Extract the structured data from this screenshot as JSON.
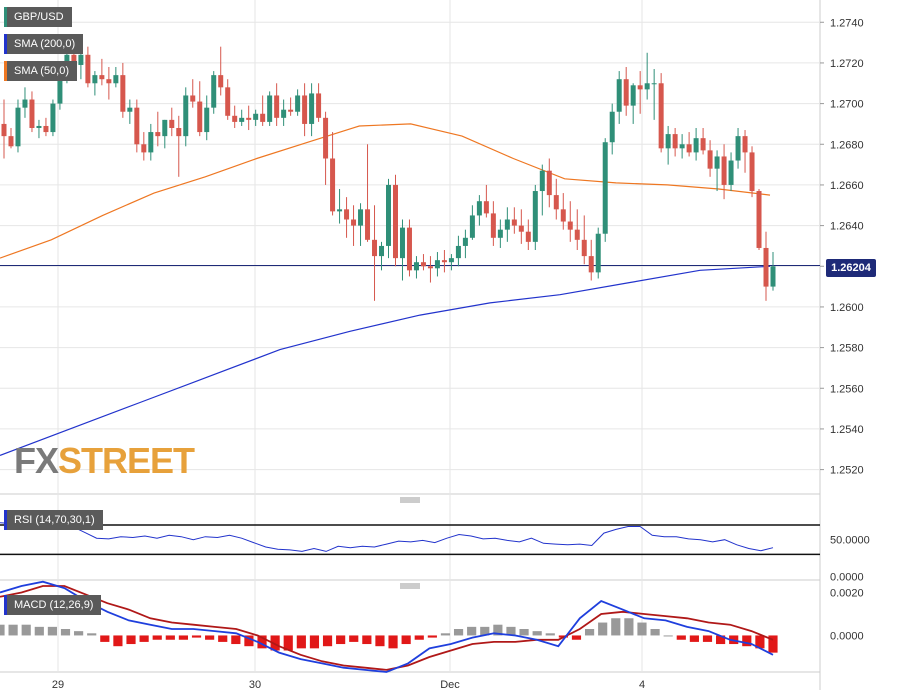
{
  "chart_data": [
    {
      "panel": "price",
      "type": "candlestick",
      "title": "GBP/USD",
      "ylim": [
        1.2508,
        1.2748
      ],
      "yticks": [
        "1.2740",
        "1.2720",
        "1.2700",
        "1.2680",
        "1.2660",
        "1.2640",
        "1.2620",
        "1.2600",
        "1.2580",
        "1.2560",
        "1.2540",
        "1.2520"
      ],
      "xticks": [
        "29",
        "30",
        "Dec",
        "4"
      ],
      "current_price": "1.26204",
      "current_price_value": 1.26204,
      "candles": [
        [
          1.269,
          1.2702,
          1.2673,
          1.2684
        ],
        [
          1.2684,
          1.2688,
          1.2678,
          1.2679
        ],
        [
          1.2679,
          1.2702,
          1.2676,
          1.2698
        ],
        [
          1.2698,
          1.2708,
          1.2693,
          1.2702
        ],
        [
          1.2702,
          1.2706,
          1.2686,
          1.2688
        ],
        [
          1.2688,
          1.2692,
          1.2683,
          1.2689
        ],
        [
          1.2689,
          1.2693,
          1.2684,
          1.2686
        ],
        [
          1.2686,
          1.2702,
          1.2684,
          1.27
        ],
        [
          1.27,
          1.272,
          1.2697,
          1.2715
        ],
        [
          1.2715,
          1.2732,
          1.271,
          1.2724
        ],
        [
          1.2724,
          1.2734,
          1.2716,
          1.2719
        ],
        [
          1.2719,
          1.273,
          1.2712,
          1.2724
        ],
        [
          1.2724,
          1.2728,
          1.2708,
          1.271
        ],
        [
          1.271,
          1.2716,
          1.2704,
          1.2714
        ],
        [
          1.2714,
          1.2722,
          1.2709,
          1.2712
        ],
        [
          1.2712,
          1.2718,
          1.2702,
          1.271
        ],
        [
          1.271,
          1.2718,
          1.2708,
          1.2714
        ],
        [
          1.2714,
          1.272,
          1.2693,
          1.2696
        ],
        [
          1.2696,
          1.2702,
          1.269,
          1.2698
        ],
        [
          1.2698,
          1.2702,
          1.2676,
          1.268
        ],
        [
          1.268,
          1.2686,
          1.2672,
          1.2676
        ],
        [
          1.2676,
          1.269,
          1.2672,
          1.2686
        ],
        [
          1.2686,
          1.2696,
          1.2679,
          1.2684
        ],
        [
          1.2684,
          1.2692,
          1.2678,
          1.2692
        ],
        [
          1.2692,
          1.2698,
          1.2684,
          1.2688
        ],
        [
          1.2688,
          1.2694,
          1.2664,
          1.2684
        ],
        [
          1.2684,
          1.2708,
          1.2679,
          1.2704
        ],
        [
          1.2704,
          1.2712,
          1.2698,
          1.2701
        ],
        [
          1.2701,
          1.2711,
          1.2684,
          1.2686
        ],
        [
          1.2686,
          1.2704,
          1.2682,
          1.2698
        ],
        [
          1.2698,
          1.2716,
          1.2695,
          1.2714
        ],
        [
          1.2714,
          1.2728,
          1.2704,
          1.2708
        ],
        [
          1.2708,
          1.2712,
          1.2692,
          1.2694
        ],
        [
          1.2694,
          1.2699,
          1.2688,
          1.2691
        ],
        [
          1.2691,
          1.2697,
          1.2689,
          1.2693
        ],
        [
          1.2693,
          1.2699,
          1.2687,
          1.2692
        ],
        [
          1.2692,
          1.2697,
          1.2689,
          1.2695
        ],
        [
          1.2695,
          1.2704,
          1.2689,
          1.2691
        ],
        [
          1.2691,
          1.2706,
          1.2689,
          1.2704
        ],
        [
          1.2704,
          1.271,
          1.2689,
          1.2693
        ],
        [
          1.2693,
          1.2702,
          1.2689,
          1.2697
        ],
        [
          1.2697,
          1.2703,
          1.2694,
          1.2696
        ],
        [
          1.2696,
          1.2707,
          1.2694,
          1.2704
        ],
        [
          1.2704,
          1.271,
          1.2684,
          1.269
        ],
        [
          1.269,
          1.271,
          1.2684,
          1.2705
        ],
        [
          1.2705,
          1.271,
          1.2691,
          1.2693
        ],
        [
          1.2693,
          1.2696,
          1.266,
          1.2673
        ],
        [
          1.2673,
          1.2686,
          1.2645,
          1.2647
        ],
        [
          1.2647,
          1.2658,
          1.2641,
          1.2648
        ],
        [
          1.2648,
          1.2654,
          1.2634,
          1.2643
        ],
        [
          1.2643,
          1.265,
          1.263,
          1.264
        ],
        [
          1.264,
          1.2651,
          1.263,
          1.2648
        ],
        [
          1.2648,
          1.268,
          1.2632,
          1.2633
        ],
        [
          1.2633,
          1.265,
          1.2603,
          1.2625
        ],
        [
          1.2625,
          1.2632,
          1.2618,
          1.263
        ],
        [
          1.263,
          1.2663,
          1.2624,
          1.266
        ],
        [
          1.266,
          1.2665,
          1.262,
          1.2624
        ],
        [
          1.2624,
          1.2643,
          1.2613,
          1.2639
        ],
        [
          1.2639,
          1.2643,
          1.2615,
          1.2618
        ],
        [
          1.2618,
          1.2625,
          1.2614,
          1.2622
        ],
        [
          1.2622,
          1.2626,
          1.2618,
          1.262
        ],
        [
          1.262,
          1.2625,
          1.2612,
          1.2619
        ],
        [
          1.2619,
          1.2627,
          1.2615,
          1.2623
        ],
        [
          1.2623,
          1.2628,
          1.2617,
          1.2622
        ],
        [
          1.2622,
          1.2626,
          1.2618,
          1.2624
        ],
        [
          1.2624,
          1.2635,
          1.262,
          1.263
        ],
        [
          1.263,
          1.2638,
          1.2624,
          1.2634
        ],
        [
          1.2634,
          1.265,
          1.2633,
          1.2645
        ],
        [
          1.2645,
          1.2655,
          1.264,
          1.2652
        ],
        [
          1.2652,
          1.266,
          1.2644,
          1.2646
        ],
        [
          1.2646,
          1.2652,
          1.263,
          1.2634
        ],
        [
          1.2634,
          1.2643,
          1.2629,
          1.2638
        ],
        [
          1.2638,
          1.2649,
          1.2632,
          1.2643
        ],
        [
          1.2643,
          1.2649,
          1.2636,
          1.264
        ],
        [
          1.264,
          1.2648,
          1.2631,
          1.2637
        ],
        [
          1.2637,
          1.2643,
          1.2628,
          1.2632
        ],
        [
          1.2632,
          1.266,
          1.2628,
          1.2657
        ],
        [
          1.2657,
          1.267,
          1.2645,
          1.2667
        ],
        [
          1.2667,
          1.2673,
          1.2649,
          1.2655
        ],
        [
          1.2655,
          1.2663,
          1.2643,
          1.2648
        ],
        [
          1.2648,
          1.2656,
          1.2638,
          1.2642
        ],
        [
          1.2642,
          1.2652,
          1.2632,
          1.2638
        ],
        [
          1.2638,
          1.2648,
          1.2628,
          1.2633
        ],
        [
          1.2633,
          1.2645,
          1.2621,
          1.2625
        ],
        [
          1.2625,
          1.2633,
          1.2613,
          1.2617
        ],
        [
          1.2617,
          1.2639,
          1.2614,
          1.2636
        ],
        [
          1.2636,
          1.2683,
          1.2632,
          1.2681
        ],
        [
          1.2681,
          1.27,
          1.2675,
          1.2696
        ],
        [
          1.2696,
          1.2716,
          1.269,
          1.2712
        ],
        [
          1.2712,
          1.2718,
          1.2694,
          1.2699
        ],
        [
          1.2699,
          1.271,
          1.269,
          1.2709
        ],
        [
          1.2709,
          1.2716,
          1.2695,
          1.2707
        ],
        [
          1.2707,
          1.2725,
          1.2702,
          1.271
        ],
        [
          1.271,
          1.2717,
          1.2692,
          1.271
        ],
        [
          1.271,
          1.2715,
          1.2676,
          1.2678
        ],
        [
          1.2678,
          1.2689,
          1.267,
          1.2685
        ],
        [
          1.2685,
          1.2688,
          1.2674,
          1.2678
        ],
        [
          1.2678,
          1.2685,
          1.2673,
          1.268
        ],
        [
          1.268,
          1.2686,
          1.2674,
          1.2676
        ],
        [
          1.2676,
          1.2688,
          1.2672,
          1.2683
        ],
        [
          1.2683,
          1.2688,
          1.2675,
          1.2677
        ],
        [
          1.2677,
          1.2682,
          1.2664,
          1.2668
        ],
        [
          1.2668,
          1.2677,
          1.2657,
          1.2674
        ],
        [
          1.2674,
          1.268,
          1.2653,
          1.266
        ],
        [
          1.266,
          1.2676,
          1.2657,
          1.2672
        ],
        [
          1.2672,
          1.2688,
          1.2668,
          1.2684
        ],
        [
          1.2684,
          1.2687,
          1.2666,
          1.2676
        ],
        [
          1.2676,
          1.2679,
          1.2654,
          1.2657
        ],
        [
          1.2657,
          1.2658,
          1.2628,
          1.2629
        ],
        [
          1.2629,
          1.2637,
          1.2603,
          1.261
        ],
        [
          1.261,
          1.2627,
          1.2608,
          1.262
        ]
      ],
      "series": [
        {
          "name": "SMA (200,0)",
          "color": "#2233cc",
          "values": [
            1.2527,
            1.254,
            1.2553,
            1.2566,
            1.2579,
            1.2588,
            1.2596,
            1.2602,
            1.2606,
            1.2612,
            1.2618,
            1.262
          ]
        },
        {
          "name": "SMA (50,0)",
          "color": "#ee7722",
          "values": [
            1.2624,
            1.2633,
            1.2645,
            1.2656,
            1.2664,
            1.2673,
            1.2681,
            1.2689,
            1.269,
            1.2684,
            1.2673,
            1.2663,
            1.2661,
            1.266,
            1.2658,
            1.2655
          ]
        }
      ]
    },
    {
      "panel": "rsi",
      "type": "line",
      "title": "RSI (14,70,30,1)",
      "ylim": [
        -5,
        100
      ],
      "yticks": [
        "50.0000",
        "0.0000"
      ],
      "levels": [
        70,
        30
      ],
      "values": [
        73,
        72,
        74,
        70,
        71,
        69,
        68,
        60,
        52,
        51,
        54,
        53,
        55,
        52,
        56,
        54,
        50,
        54,
        53,
        56,
        52,
        46,
        40,
        37,
        36,
        34,
        38,
        34,
        41,
        39,
        41,
        40,
        44,
        48,
        47,
        49,
        46,
        52,
        57,
        55,
        51,
        52,
        49,
        47,
        52,
        45,
        44,
        43,
        44,
        42,
        59,
        64,
        68,
        68,
        56,
        54,
        54,
        51,
        50,
        47,
        50,
        43,
        38,
        35,
        39
      ]
    },
    {
      "panel": "macd",
      "type": "bar",
      "title": "MACD (12,26,9)",
      "ylim": [
        -0.0017,
        0.0023
      ],
      "yticks": [
        "0.0020",
        "0.0000"
      ],
      "macd": [
        0.002,
        0.0023,
        0.0025,
        0.0022,
        0.0016,
        0.0011,
        0.0007,
        0.0005,
        0.0003,
        0.0003,
        0.0002,
        0.0001,
        -0.0003,
        -0.0008,
        -0.0011,
        -0.0013,
        -0.0015,
        -0.0016,
        -0.0017,
        -0.0013,
        -0.0006,
        -0.0004,
        -0.0001,
        0.0001,
        0.0,
        -0.0002,
        -0.0005,
        0.0008,
        0.0016,
        0.0012,
        0.0008,
        0.0007,
        0.0004,
        0.0002,
        -0.0002,
        -0.0004,
        -0.0009
      ],
      "signal": [
        0.0018,
        0.002,
        0.0023,
        0.0023,
        0.0019,
        0.0015,
        0.0012,
        0.0008,
        0.0006,
        0.0005,
        0.0004,
        0.0003,
        0.0,
        -0.0005,
        -0.0009,
        -0.0012,
        -0.0014,
        -0.0015,
        -0.0016,
        -0.0014,
        -0.001,
        -0.0007,
        -0.0004,
        -0.0003,
        -0.0003,
        -0.0002,
        -0.0002,
        0.0003,
        0.001,
        0.0011,
        0.001,
        0.0009,
        0.0008,
        0.0006,
        0.0005,
        0.0002,
        -0.0002
      ],
      "histogram": [
        0.0005,
        0.0005,
        0.0005,
        0.0004,
        0.0004,
        0.0003,
        0.0002,
        0.0001,
        -0.0003,
        -0.0005,
        -0.0004,
        -0.0003,
        -0.0002,
        -0.0002,
        -0.0002,
        -0.0001,
        -0.0002,
        -0.0003,
        -0.0004,
        -0.0005,
        -0.0006,
        -0.0007,
        -0.0007,
        -0.0006,
        -0.0006,
        -0.0005,
        -0.0004,
        -0.0003,
        -0.0004,
        -0.0005,
        -0.0006,
        -0.0004,
        -0.0002,
        -0.0001,
        0.0001,
        0.0003,
        0.0004,
        0.0004,
        0.0005,
        0.0004,
        0.0003,
        0.0002,
        0.0001,
        -0.0001,
        -0.0002,
        0.0003,
        0.0006,
        0.0008,
        0.0008,
        0.0006,
        0.0003,
        0.0,
        -0.0002,
        -0.0003,
        -0.0003,
        -0.0004,
        -0.0004,
        -0.0005,
        -0.0006,
        -0.0008
      ],
      "colors": {
        "macd": "#1f3fdd",
        "signal": "#b01818",
        "hist_pos": "#999999",
        "hist_neg": "#e11818"
      }
    }
  ],
  "colors": {
    "bull": "#2f8f78",
    "bear": "#d6574d",
    "price_line": "#1e2a78",
    "grid": "#e6e6e6"
  },
  "watermark": {
    "part1": "FX",
    "part2": "STREET"
  }
}
